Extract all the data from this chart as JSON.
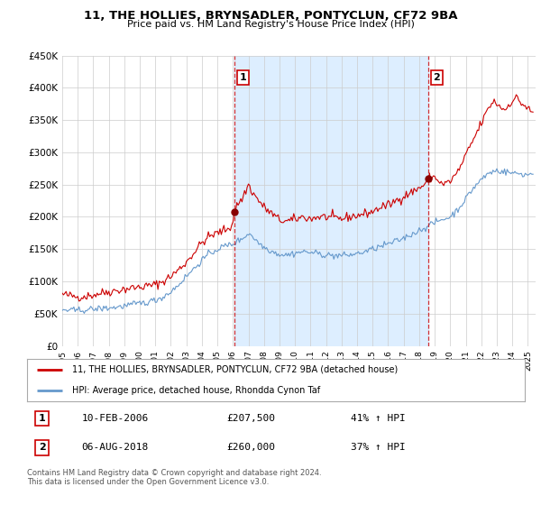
{
  "title": "11, THE HOLLIES, BRYNSADLER, PONTYCLUN, CF72 9BA",
  "subtitle": "Price paid vs. HM Land Registry's House Price Index (HPI)",
  "legend_line1": "11, THE HOLLIES, BRYNSADLER, PONTYCLUN, CF72 9BA (detached house)",
  "legend_line2": "HPI: Average price, detached house, Rhondda Cynon Taf",
  "annotation1_date": "10-FEB-2006",
  "annotation1_price": "£207,500",
  "annotation1_hpi": "41% ↑ HPI",
  "annotation2_date": "06-AUG-2018",
  "annotation2_price": "£260,000",
  "annotation2_hpi": "37% ↑ HPI",
  "footer": "Contains HM Land Registry data © Crown copyright and database right 2024.\nThis data is licensed under the Open Government Licence v3.0.",
  "ylim": [
    0,
    450000
  ],
  "yticks": [
    0,
    50000,
    100000,
    150000,
    200000,
    250000,
    300000,
    350000,
    400000,
    450000
  ],
  "ytick_labels": [
    "£0",
    "£50K",
    "£100K",
    "£150K",
    "£200K",
    "£250K",
    "£300K",
    "£350K",
    "£400K",
    "£450K"
  ],
  "xlim_start": 1995.0,
  "xlim_end": 2025.5,
  "xticks": [
    1995,
    1996,
    1997,
    1998,
    1999,
    2000,
    2001,
    2002,
    2003,
    2004,
    2005,
    2006,
    2007,
    2008,
    2009,
    2010,
    2011,
    2012,
    2013,
    2014,
    2015,
    2016,
    2017,
    2018,
    2019,
    2020,
    2021,
    2022,
    2023,
    2024,
    2025
  ],
  "red_line_color": "#cc0000",
  "blue_line_color": "#6699cc",
  "vline_color": "#cc0000",
  "shade_color": "#ddeeff",
  "marker1_x": 2006.11,
  "marker2_x": 2018.6,
  "sale1_x": 2006.11,
  "sale1_y": 207500,
  "sale2_x": 2018.6,
  "sale2_y": 260000,
  "background_color": "#ffffff",
  "grid_color": "#cccccc"
}
